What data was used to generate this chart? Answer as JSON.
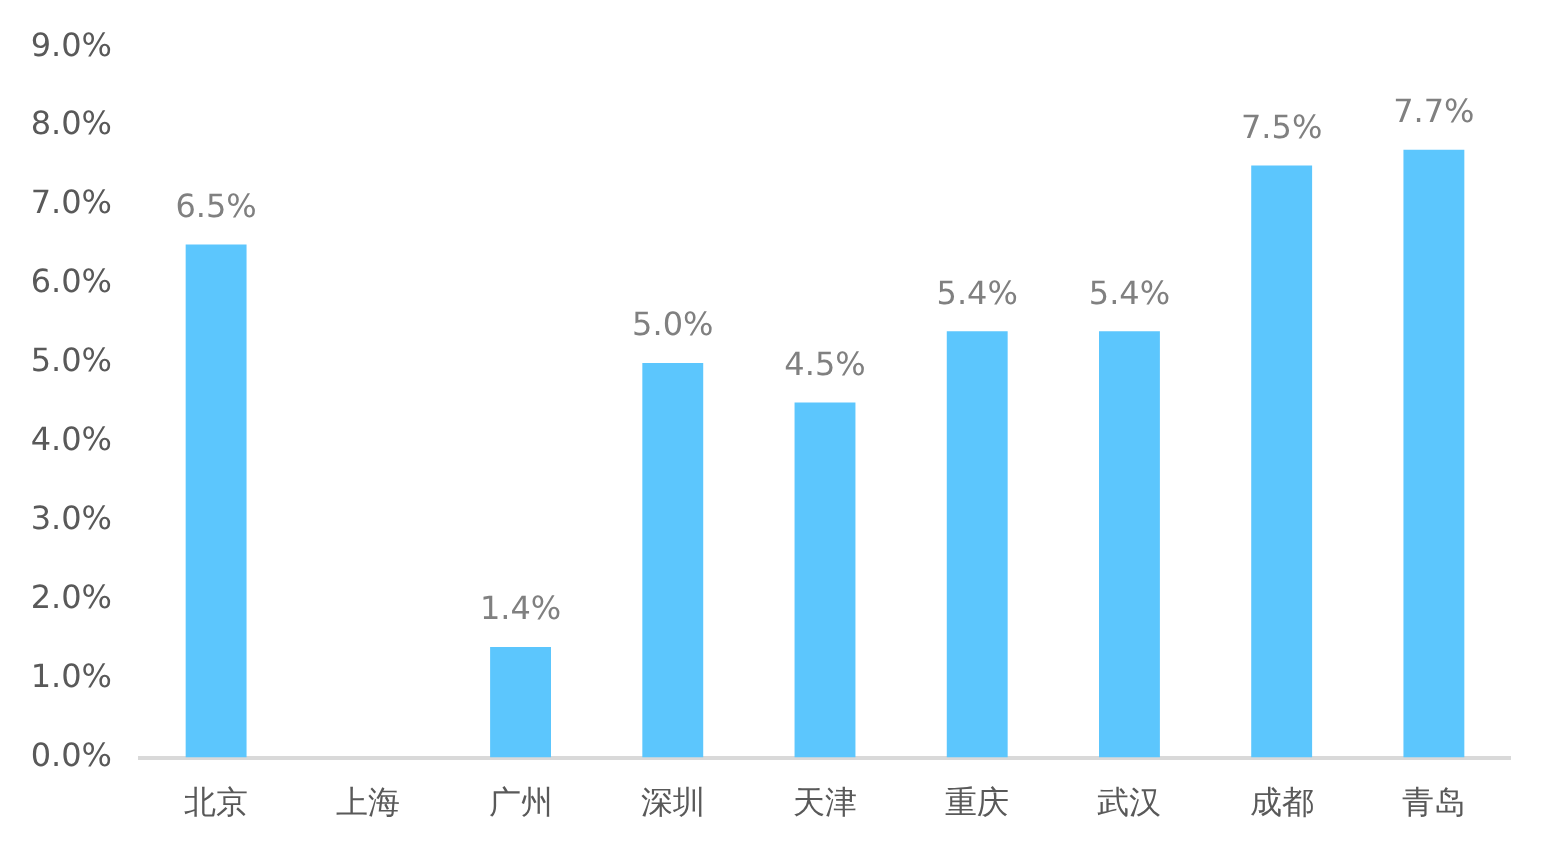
{
  "chart_data": {
    "type": "bar",
    "categories": [
      "北京",
      "上海",
      "广州",
      "深圳",
      "天津",
      "重庆",
      "武汉",
      "成都",
      "青岛"
    ],
    "values": [
      6.5,
      null,
      1.4,
      5.0,
      4.5,
      5.4,
      5.4,
      7.5,
      7.7
    ],
    "color": "#5cc6fd",
    "value_labels": [
      "6.5%",
      null,
      "1.4%",
      "5.0%",
      "4.5%",
      "5.4%",
      "5.4%",
      "7.5%",
      "7.7%"
    ],
    "ylim": [
      0,
      9
    ],
    "yticks": [
      {
        "value": 0,
        "label": "0.0%"
      },
      {
        "value": 1,
        "label": "1.0%"
      },
      {
        "value": 2,
        "label": "2.0%"
      },
      {
        "value": 3,
        "label": "3.0%"
      },
      {
        "value": 4,
        "label": "4.0%"
      },
      {
        "value": 5,
        "label": "5.0%"
      },
      {
        "value": 6,
        "label": "6.0%"
      },
      {
        "value": 7,
        "label": "7.0%"
      },
      {
        "value": 8,
        "label": "8.0%"
      },
      {
        "value": 9,
        "label": "9.0%"
      }
    ]
  }
}
